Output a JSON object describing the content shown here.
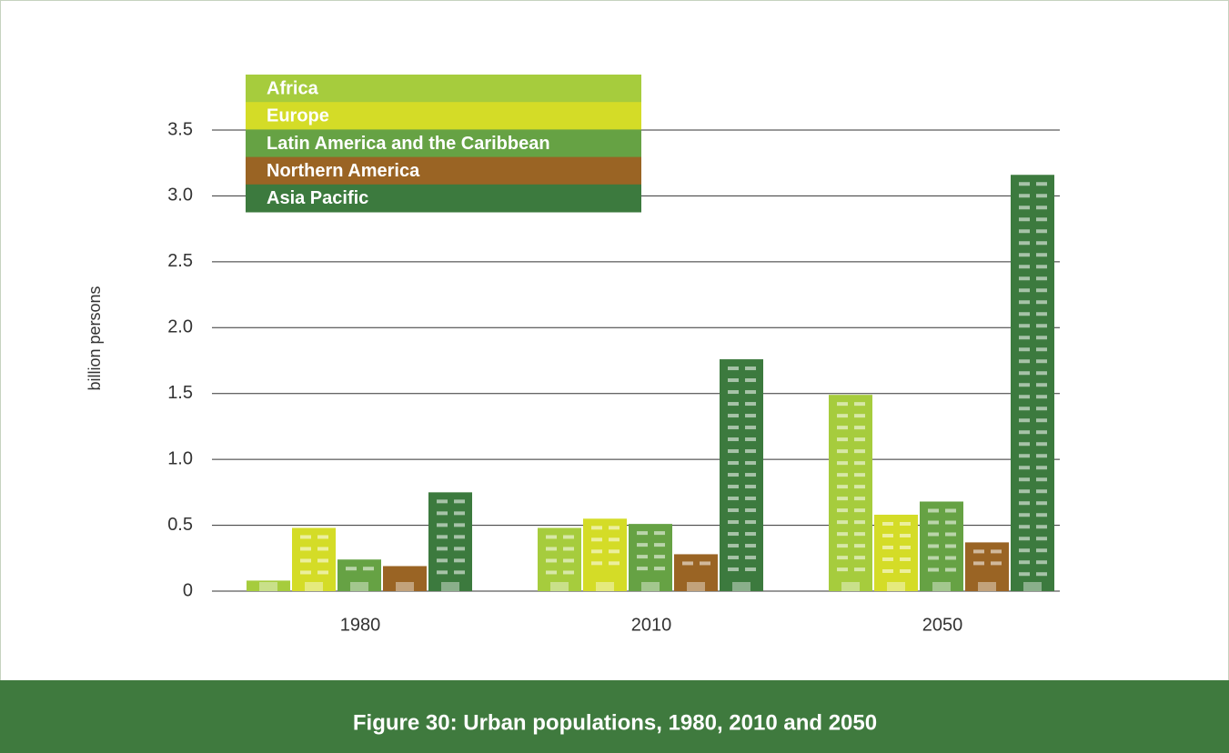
{
  "chart_data": {
    "type": "bar",
    "title": "Figure 30: Urban populations, 1980, 2010 and 2050",
    "y_label": "billion persons",
    "categories": [
      "1980",
      "2010",
      "2050"
    ],
    "series": [
      {
        "name": "Africa",
        "color": "#a6cc3d",
        "values": [
          0.08,
          0.48,
          1.49
        ]
      },
      {
        "name": "Europe",
        "color": "#d4dc27",
        "values": [
          0.48,
          0.55,
          0.58
        ]
      },
      {
        "name": "Latin America and the Caribbean",
        "color": "#66a244",
        "values": [
          0.24,
          0.51,
          0.68
        ]
      },
      {
        "name": "Northern America",
        "color": "#9a6424",
        "values": [
          0.19,
          0.28,
          0.37
        ]
      },
      {
        "name": "Asia Pacific",
        "color": "#3c7a3e",
        "values": [
          0.75,
          1.76,
          3.16
        ]
      }
    ],
    "ylim": [
      0,
      3.5
    ],
    "yticks": [
      0,
      0.5,
      {
        "value": 1,
        "label": "1.0"
      },
      1.5,
      {
        "value": 2,
        "label": "2.0"
      },
      2.5,
      {
        "value": 3,
        "label": "3.0"
      },
      3.5
    ],
    "grid": true,
    "legend": "top-left"
  }
}
